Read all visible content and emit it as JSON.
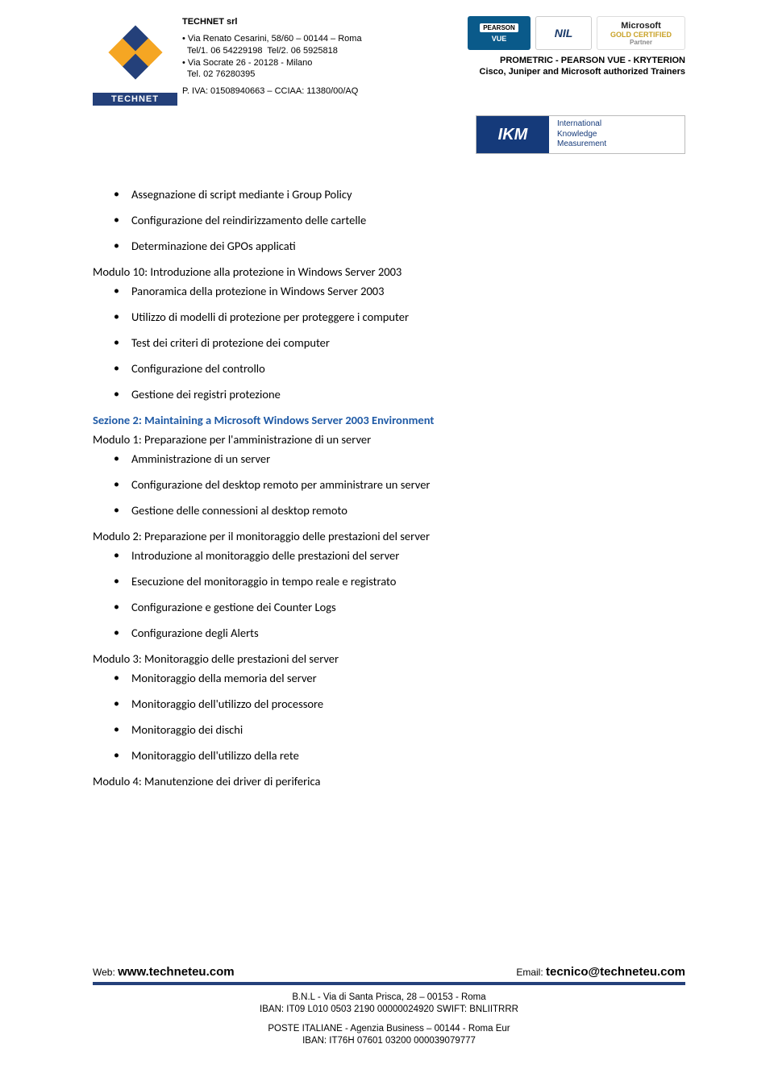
{
  "header": {
    "company_name": "TECHNET srl",
    "addr1": "• Via Renato Cesarini, 58/60 – 00144 – Roma",
    "tel1": "  Tel/1. 06 54229198  Tel/2. 06 5925818",
    "addr2": "• Via Socrate 26 - 20128 - Milano",
    "tel2": "  Tel. 02 76280395",
    "piva": "P. IVA: 01508940663 – CCIAA: 11380/00/AQ",
    "logo_text": "TECHNET",
    "subhead1": "PROMETRIC - PEARSON VUE - KRYTERION",
    "subhead2": "Cisco, Juniper and  Microsoft authorized Trainers",
    "badge_pearson_top": "PEARSON",
    "badge_pearson_bottom": "VUE",
    "badge_nil": "NIL",
    "badge_ms1": "Microsoft",
    "badge_ms2": "GOLD CERTIFIED",
    "badge_ms3": "Partner",
    "ikm_logo": "IKM",
    "ikm_l1": "International",
    "ikm_l2": "Knowledge",
    "ikm_l3": "Measurement"
  },
  "content": {
    "top_bullets": [
      "Assegnazione di script mediante i Group Policy",
      "Configurazione del reindirizzamento delle cartelle",
      "Determinazione dei GPOs applicati"
    ],
    "mod10_title": "Modulo 10: Introduzione alla protezione in Windows Server 2003",
    "mod10_bullets": [
      "Panoramica della protezione in Windows Server 2003",
      "Utilizzo di modelli di protezione per proteggere i computer",
      "Test dei criteri di protezione dei computer",
      "Configurazione del controllo",
      "Gestione dei registri protezione"
    ],
    "section2_title": "Sezione 2: Maintaining a Microsoft Windows Server 2003 Environment",
    "s2m1_title": "Modulo 1: Preparazione per l'amministrazione di un server",
    "s2m1_bullets": [
      "Amministrazione di un server",
      "Configurazione del desktop remoto per amministrare un server",
      "Gestione delle connessioni al desktop remoto"
    ],
    "s2m2_title": "Modulo 2: Preparazione per il monitoraggio delle prestazioni del server",
    "s2m2_bullets": [
      "Introduzione al monitoraggio delle prestazioni del server",
      "Esecuzione del monitoraggio in tempo reale e registrato",
      "Configurazione e gestione dei Counter Logs",
      "Configurazione degli Alerts"
    ],
    "s2m3_title": "Modulo 3: Monitoraggio delle prestazioni del server",
    "s2m3_bullets": [
      "Monitoraggio della memoria del server",
      "Monitoraggio dell'utilizzo del processore",
      "Monitoraggio dei dischi",
      "Monitoraggio dell'utilizzo della rete"
    ],
    "s2m4_title": "Modulo 4: Manutenzione dei driver di periferica"
  },
  "footer": {
    "web_label": "Web: ",
    "web": "www.techneteu.com",
    "email_label": "Email: ",
    "email": "tecnico@techneteu.com",
    "bnl1": "B.N.L  - Via di Santa Prisca, 28 – 00153 - Roma",
    "bnl2": "IBAN: IT09 L010 0503 2190 00000024920   SWIFT: BNLIITRRR",
    "poste1": "POSTE ITALIANE - Agenzia Business – 00144 - Roma Eur",
    "poste2": "IBAN: IT76H 07601 03200 000039079777"
  },
  "colors": {
    "brand_blue": "#24407a",
    "link_blue": "#1f5aa6"
  }
}
